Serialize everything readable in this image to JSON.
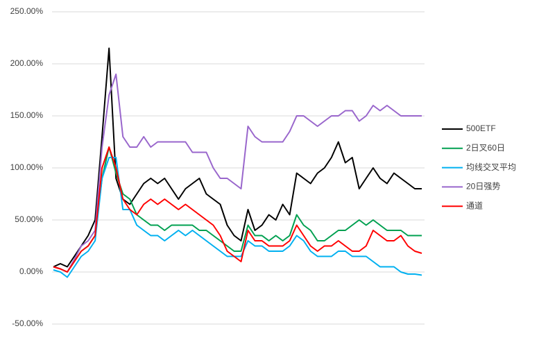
{
  "chart_data": {
    "type": "line",
    "ylim": [
      -50,
      250
    ],
    "yticks": [
      {
        "value": -50,
        "label": "-50.00%"
      },
      {
        "value": 0,
        "label": "0.00%"
      },
      {
        "value": 50,
        "label": "50.00%"
      },
      {
        "value": 100,
        "label": "100.00%"
      },
      {
        "value": 150,
        "label": "150.00%"
      },
      {
        "value": 200,
        "label": "200.00%"
      },
      {
        "value": 250,
        "label": "250.00%"
      }
    ],
    "grid": true,
    "legend": "right",
    "series": [
      {
        "name": "500ETF",
        "color": "#000000",
        "values": [
          5,
          8,
          5,
          15,
          25,
          35,
          50,
          130,
          215,
          90,
          70,
          65,
          75,
          85,
          90,
          85,
          90,
          80,
          70,
          80,
          85,
          90,
          75,
          70,
          65,
          45,
          35,
          30,
          60,
          40,
          45,
          55,
          50,
          65,
          55,
          95,
          90,
          85,
          95,
          100,
          110,
          125,
          105,
          110,
          80,
          90,
          100,
          90,
          85,
          95,
          90,
          85,
          80,
          80
        ]
      },
      {
        "name": "2日叉60日",
        "color": "#00a050",
        "values": [
          5,
          3,
          0,
          10,
          20,
          25,
          35,
          90,
          120,
          95,
          75,
          70,
          55,
          50,
          45,
          45,
          40,
          45,
          45,
          45,
          45,
          40,
          40,
          35,
          30,
          25,
          20,
          20,
          45,
          35,
          35,
          30,
          35,
          30,
          35,
          55,
          45,
          40,
          30,
          30,
          35,
          40,
          40,
          45,
          50,
          45,
          50,
          45,
          40,
          40,
          40,
          35,
          35,
          35
        ]
      },
      {
        "name": "均线交叉平均",
        "color": "#00b0f0",
        "values": [
          2,
          0,
          -5,
          5,
          15,
          20,
          30,
          90,
          110,
          110,
          60,
          60,
          45,
          40,
          35,
          35,
          30,
          35,
          40,
          35,
          40,
          35,
          30,
          25,
          20,
          15,
          15,
          15,
          30,
          25,
          25,
          20,
          20,
          20,
          25,
          35,
          30,
          20,
          15,
          15,
          15,
          20,
          20,
          15,
          15,
          15,
          10,
          5,
          5,
          5,
          0,
          -2,
          -2,
          -3
        ]
      },
      {
        "name": "20日强势",
        "color": "#9966cc",
        "values": [
          5,
          3,
          0,
          12,
          25,
          30,
          40,
          120,
          170,
          190,
          130,
          120,
          120,
          130,
          120,
          125,
          125,
          125,
          125,
          125,
          115,
          115,
          115,
          100,
          90,
          90,
          85,
          80,
          140,
          130,
          125,
          125,
          125,
          125,
          135,
          150,
          150,
          145,
          140,
          145,
          150,
          150,
          155,
          155,
          145,
          150,
          160,
          155,
          160,
          155,
          150,
          150,
          150,
          150
        ]
      },
      {
        "name": "通道",
        "color": "#ff0000",
        "values": [
          5,
          3,
          0,
          10,
          20,
          25,
          35,
          100,
          120,
          100,
          70,
          60,
          55,
          65,
          70,
          65,
          70,
          65,
          60,
          65,
          60,
          55,
          50,
          45,
          35,
          20,
          15,
          10,
          40,
          30,
          30,
          25,
          25,
          25,
          30,
          45,
          35,
          25,
          20,
          25,
          25,
          30,
          25,
          20,
          20,
          25,
          40,
          35,
          30,
          30,
          35,
          25,
          20,
          18
        ]
      }
    ]
  }
}
